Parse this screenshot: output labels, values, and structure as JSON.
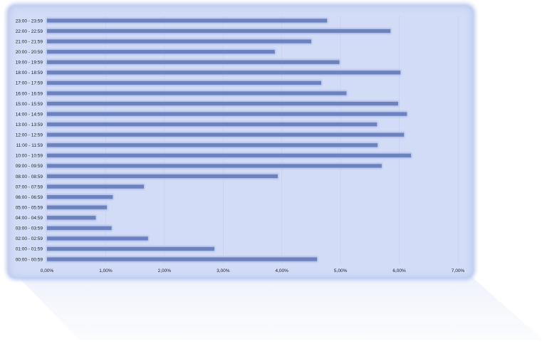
{
  "chart_data": {
    "type": "bar",
    "orientation": "horizontal",
    "title": "",
    "xlabel": "",
    "ylabel": "",
    "xlim": [
      0,
      7
    ],
    "grid": "vertical",
    "legend": "none",
    "x_ticks": [
      "0,00%",
      "1,00%",
      "2,00%",
      "3,00%",
      "4,00%",
      "5,00%",
      "6,00%",
      "7,00%"
    ],
    "categories": [
      "00:00 - 00:59",
      "01:00 - 01:59",
      "02:00 - 02:59",
      "03:00 - 03:59",
      "04:00 - 04:59",
      "05:00 - 05:59",
      "06:00 - 06:59",
      "07:00 - 07:59",
      "08:00 - 08:59",
      "09:00 - 09:59",
      "10:00 - 10:59",
      "11:00 - 11:59",
      "12:00 - 12:59",
      "13:00 - 13:59",
      "14:00 - 14:59",
      "15:00 - 15:59",
      "16:00 - 16:59",
      "17:00 - 17:59",
      "18:00 - 18:59",
      "19:00 - 19:59",
      "20:00 - 20:59",
      "21:00 - 21:59",
      "22:00 - 22:59",
      "23:00 - 23:59"
    ],
    "values": [
      4.6,
      2.85,
      1.72,
      1.1,
      0.83,
      1.02,
      1.12,
      1.65,
      3.93,
      5.7,
      6.2,
      5.63,
      6.08,
      5.62,
      6.13,
      5.98,
      5.1,
      4.67,
      6.02,
      4.98,
      3.88,
      4.5,
      5.85,
      4.77
    ],
    "colors": {
      "bar": "#6b82be",
      "bar_glow": "#a9b9e6",
      "grid": "#c4cff0",
      "panel": "#d3dcf6"
    }
  }
}
